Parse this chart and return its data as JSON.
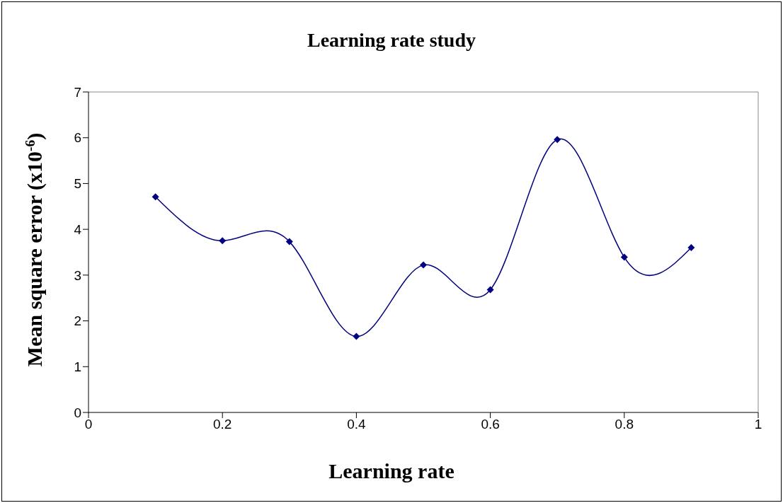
{
  "chart_data": {
    "type": "line",
    "title": "Learning rate study",
    "xlabel": "Learning rate",
    "ylabel": "Mean square error (x10$^{-6}$)",
    "x": [
      0.1,
      0.2,
      0.3,
      0.4,
      0.5,
      0.6,
      0.7,
      0.8,
      0.9
    ],
    "series": [
      {
        "color": "#000080",
        "values": [
          4.71,
          3.75,
          3.73,
          1.66,
          3.22,
          2.68,
          5.96,
          3.39,
          3.6
        ]
      }
    ],
    "xlim": [
      0,
      1
    ],
    "xticks": [
      0,
      0.2,
      0.4,
      0.6,
      0.8,
      1
    ],
    "ylim": [
      0,
      7
    ],
    "yticks": [
      0,
      1,
      2,
      3,
      4,
      5,
      6,
      7
    ],
    "grid": false,
    "marker": "diamond",
    "line_style": "solid"
  }
}
